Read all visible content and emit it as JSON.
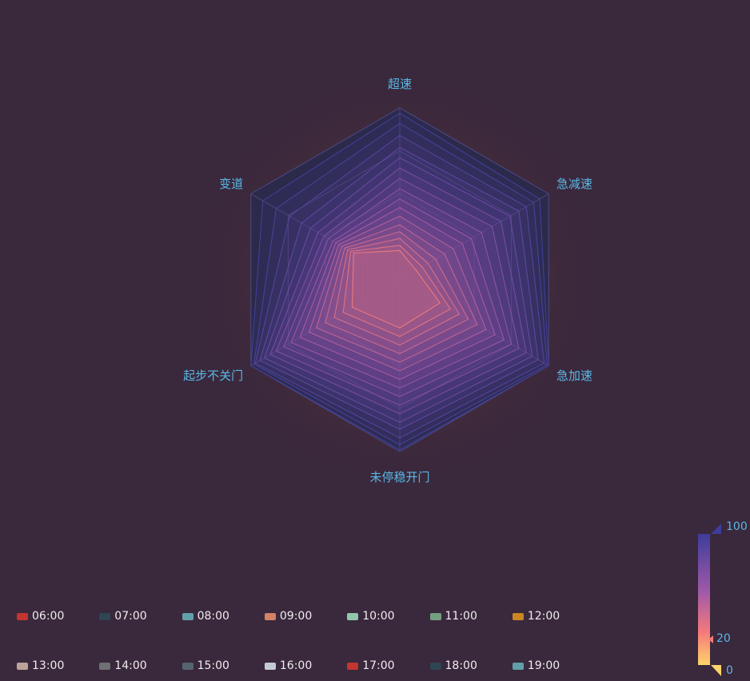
{
  "chart_data": {
    "type": "radar",
    "indicators": [
      "超速",
      "急减速",
      "急加速",
      "未停稳开门",
      "起步不关门",
      "变道"
    ],
    "max": 100,
    "series": [
      {
        "name": "06:00",
        "values": [
          17,
          11,
          27,
          28,
          32,
          31
        ]
      },
      {
        "name": "07:00",
        "values": [
          20,
          15,
          34,
          33,
          38,
          33
        ]
      },
      {
        "name": "08:00",
        "values": [
          24,
          19,
          40,
          38,
          44,
          35
        ]
      },
      {
        "name": "09:00",
        "values": [
          28,
          24,
          46,
          43,
          50,
          37
        ]
      },
      {
        "name": "10:00",
        "values": [
          32,
          30,
          52,
          48,
          56,
          39
        ]
      },
      {
        "name": "11:00",
        "values": [
          37,
          36,
          58,
          53,
          61,
          41
        ]
      },
      {
        "name": "12:00",
        "values": [
          42,
          42,
          64,
          58,
          67,
          43
        ]
      },
      {
        "name": "13:00",
        "values": [
          47,
          48,
          70,
          63,
          73,
          45
        ]
      },
      {
        "name": "14:00",
        "values": [
          53,
          55,
          75,
          68,
          78,
          48
        ]
      },
      {
        "name": "15:00",
        "values": [
          59,
          62,
          80,
          73,
          83,
          51
        ]
      },
      {
        "name": "16:00",
        "values": [
          65,
          68,
          85,
          78,
          87,
          55
        ]
      },
      {
        "name": "17:00",
        "values": [
          71,
          74,
          89,
          83,
          91,
          60
        ]
      },
      {
        "name": "18:00",
        "values": [
          77,
          80,
          93,
          87,
          94,
          66
        ]
      },
      {
        "name": "19:00",
        "values": [
          84,
          85,
          97,
          92,
          97,
          74
        ]
      },
      {
        "name": "",
        "values": [
          91,
          90,
          99,
          96,
          98,
          83
        ]
      },
      {
        "name": "",
        "values": [
          97,
          94,
          100,
          99,
          100,
          92
        ]
      }
    ],
    "legend_colors": [
      "#c23531",
      "#2f4554",
      "#61a0a8",
      "#d48265",
      "#91c7ae",
      "#749f83",
      "#ca8622",
      "#bda29a",
      "#6e7074",
      "#546570",
      "#c4ccd3",
      "#c23531",
      "#2f4554",
      "#61a0a8"
    ],
    "visual_map": {
      "min": 0,
      "max": 100,
      "handle_value": 20,
      "colors": [
        "#ffd36b",
        "#f47a7a",
        "#a25aa8",
        "#3d3d9c"
      ]
    },
    "legend_position": "bottom-left",
    "background": "#3a283c"
  },
  "visual_map_labels": {
    "max": "100",
    "min": "0",
    "handle": "20"
  }
}
